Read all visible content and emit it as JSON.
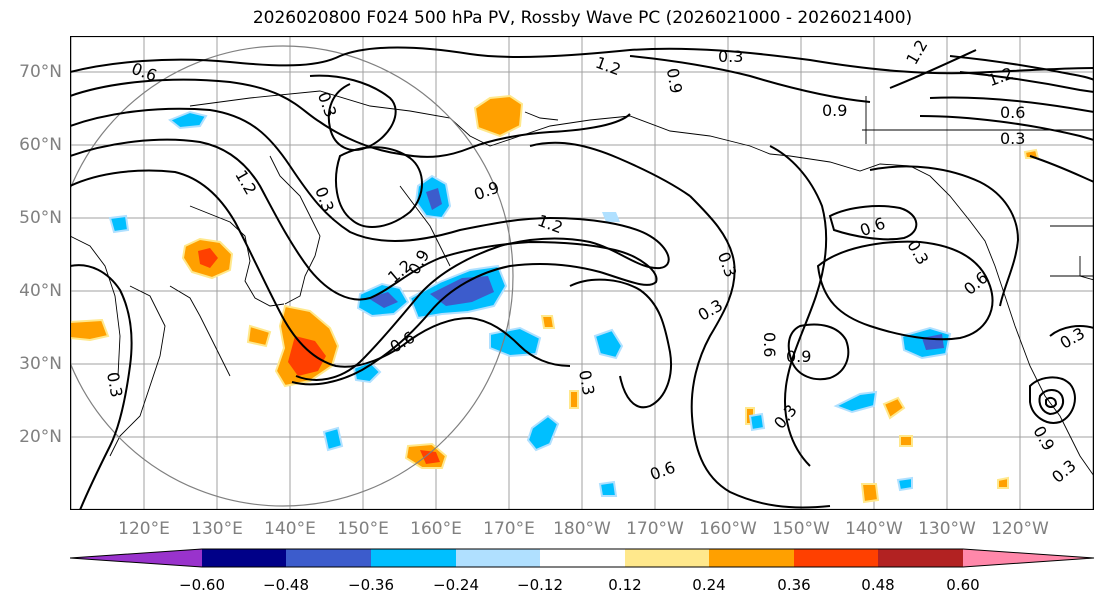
{
  "title": "2026020800 F024 500 hPa PV, Rossby Wave PC (2026021000 - 2026021400)",
  "latitude_labels": [
    "70°N",
    "60°N",
    "50°N",
    "40°N",
    "30°N",
    "20°N"
  ],
  "longitude_labels": [
    "120°E",
    "130°E",
    "140°E",
    "150°E",
    "160°E",
    "170°E",
    "180°W",
    "170°W",
    "160°W",
    "150°W",
    "140°W",
    "130°W",
    "120°W"
  ],
  "contour_labels": [
    "0.3",
    "0.6",
    "0.9",
    "1.2"
  ],
  "colorbar": {
    "ticks": [
      "−0.60",
      "−0.48",
      "−0.36",
      "−0.24",
      "−0.12",
      "0.12",
      "0.24",
      "0.36",
      "0.48",
      "0.60"
    ],
    "colors": [
      "#9933cc",
      "#000088",
      "#3c5ccc",
      "#00bfff",
      "#b0e0ff",
      "#ffffff",
      "#ffe88c",
      "#ffa000",
      "#ff4000",
      "#b22222",
      "#ff88aa"
    ]
  },
  "colors": {
    "contour": "#000000",
    "grid": "#a0a0a0",
    "coast": "#000000",
    "circle": "#808080"
  }
}
